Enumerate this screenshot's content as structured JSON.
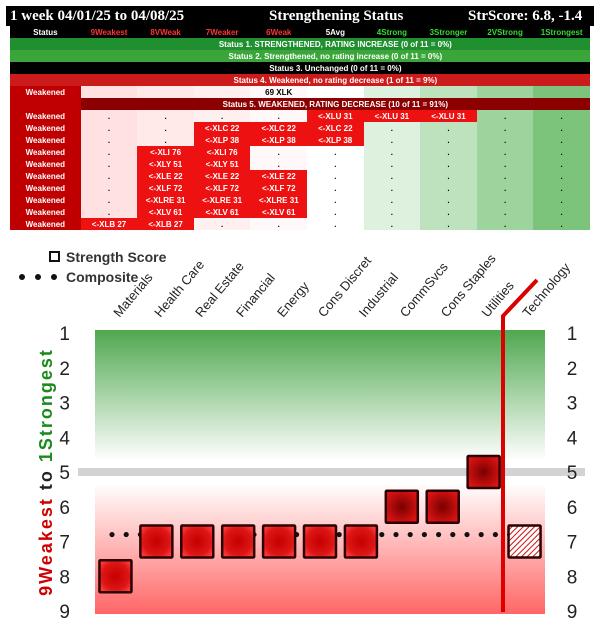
{
  "header": {
    "period": "1 week 04/01/25 to 04/08/25",
    "title": "Strengthening Status",
    "score": "StrScore: 6.8, -1.4"
  },
  "table": {
    "columns": [
      "Status",
      "9Weakest",
      "8VWeak",
      "7Weaker",
      "6Weak",
      "5Avg",
      "4Strong",
      "3Stronger",
      "2VStrong",
      "1Strongest"
    ],
    "status_lines": [
      "Status 1. STRENGTHENED, RATING INCREASE (0 of 11 = 0%)",
      "Status 2. Strengthened, no rating increase (0 of 11 = 0%)",
      "Status 3. Unchanged (0 of 11 = 0%)",
      "Status 4. Weakened, no rating decrease (1 of 11 = 9%)",
      "Status 5. WEAKENED, RATING DECREASE (10 of 11 = 91%)"
    ],
    "status4_row": {
      "label": "Weakened",
      "cells": [
        "",
        "",
        "",
        "69 XLK",
        "",
        "",
        "",
        "",
        ""
      ]
    },
    "status5_rows": [
      {
        "label": "Weakened",
        "cells": [
          ".",
          ".",
          ".",
          ".",
          "<-XLU 31",
          "<-XLU 31",
          "<-XLU 31",
          ".",
          "."
        ]
      },
      {
        "label": "Weakened",
        "cells": [
          ".",
          ".",
          "<-XLC 22",
          "<-XLC 22",
          "<-XLC 22",
          ".",
          ".",
          ".",
          "."
        ]
      },
      {
        "label": "Weakened",
        "cells": [
          ".",
          ".",
          "<-XLP 38",
          "<-XLP 38",
          "<-XLP 38",
          ".",
          ".",
          ".",
          "."
        ]
      },
      {
        "label": "Weakened",
        "cells": [
          ".",
          "<-XLI 76",
          "<-XLI 76",
          ".",
          ".",
          ".",
          ".",
          ".",
          "."
        ]
      },
      {
        "label": "Weakened",
        "cells": [
          ".",
          "<-XLY 51",
          "<-XLY 51",
          ".",
          ".",
          ".",
          ".",
          ".",
          "."
        ]
      },
      {
        "label": "Weakened",
        "cells": [
          ".",
          "<-XLE 22",
          "<-XLE 22",
          "<-XLE 22",
          ".",
          ".",
          ".",
          ".",
          "."
        ]
      },
      {
        "label": "Weakened",
        "cells": [
          ".",
          "<-XLF 72",
          "<-XLF 72",
          "<-XLF 72",
          ".",
          ".",
          ".",
          ".",
          "."
        ]
      },
      {
        "label": "Weakened",
        "cells": [
          ".",
          "<-XLRE 31",
          "<-XLRE 31",
          "<-XLRE 31",
          ".",
          ".",
          ".",
          ".",
          "."
        ]
      },
      {
        "label": "Weakened",
        "cells": [
          ".",
          "<-XLV 61",
          "<-XLV 61",
          "<-XLV 61",
          ".",
          ".",
          ".",
          ".",
          "."
        ]
      },
      {
        "label": "Weakened",
        "cells": [
          "<-XLB 27",
          "<-XLB 27",
          ".",
          ".",
          ".",
          ".",
          ".",
          ".",
          "."
        ]
      }
    ]
  },
  "chart_data": {
    "type": "scatter",
    "categories": [
      "Materials",
      "Health Care",
      "Real Estate",
      "Financial",
      "Energy",
      "Cons Discret",
      "Industrial",
      "CommSvcs",
      "Cons Staples",
      "Utilities",
      "Technology"
    ],
    "series": [
      {
        "name": "Strength Score",
        "values": [
          8,
          7,
          7,
          7,
          7,
          7,
          7,
          6,
          6,
          5,
          7
        ]
      },
      {
        "name": "Composite",
        "values": [
          6.8,
          6.8,
          6.8,
          6.8,
          6.8,
          6.8,
          6.8,
          6.8,
          6.8,
          6.8,
          6.8
        ]
      }
    ],
    "ylabel_parts": [
      "9",
      "Weakest",
      "to",
      "1",
      "Strongest"
    ],
    "yticks": [
      1,
      2,
      3,
      4,
      5,
      6,
      7,
      8,
      9
    ],
    "ylim": [
      1,
      9
    ],
    "y_inverted": true,
    "reference_line": 5,
    "legend": [
      "Strength Score",
      "Composite"
    ],
    "legend_position": "top-left"
  }
}
